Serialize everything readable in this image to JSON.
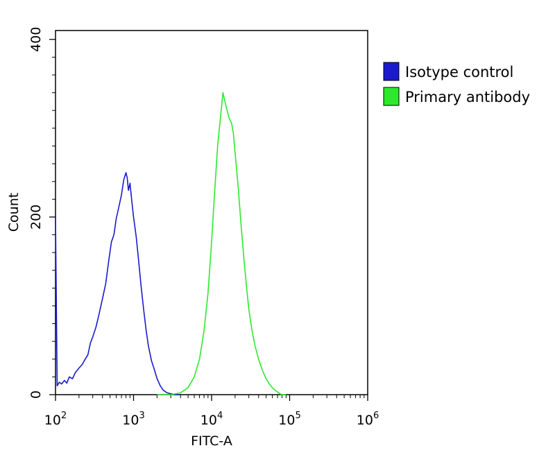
{
  "chart_data": {
    "type": "line",
    "title": "",
    "xlabel": "FITC-A",
    "ylabel": "Count",
    "x_scale": "log",
    "xlim": [
      100,
      1000000
    ],
    "ylim": [
      0,
      410
    ],
    "x_ticks": [
      {
        "value": 100,
        "base": "10",
        "exp": "2"
      },
      {
        "value": 1000,
        "base": "10",
        "exp": "3"
      },
      {
        "value": 10000,
        "base": "10",
        "exp": "4"
      },
      {
        "value": 100000,
        "base": "10",
        "exp": "5"
      },
      {
        "value": 1000000,
        "base": "10",
        "exp": "6"
      }
    ],
    "y_ticks": [
      {
        "value": 0,
        "label": "0"
      },
      {
        "value": 200,
        "label": "200"
      },
      {
        "value": 400,
        "label": "400"
      }
    ],
    "grid": false,
    "legend_position": "top-right",
    "series": [
      {
        "name": "Isotype control",
        "color": "#1a1acc",
        "x": [
          100,
          105,
          112,
          120,
          130,
          140,
          150,
          165,
          180,
          200,
          220,
          240,
          260,
          280,
          300,
          330,
          360,
          400,
          440,
          480,
          520,
          560,
          600,
          650,
          700,
          750,
          800,
          830,
          860,
          900,
          950,
          1000,
          1080,
          1150,
          1250,
          1350,
          1450,
          1550,
          1700,
          1850,
          2000,
          2200,
          2400,
          2700,
          3000,
          3400,
          3800
        ],
        "y": [
          200,
          10,
          14,
          12,
          16,
          13,
          20,
          18,
          25,
          30,
          34,
          40,
          45,
          58,
          65,
          76,
          90,
          108,
          125,
          150,
          172,
          180,
          198,
          212,
          225,
          242,
          250,
          244,
          230,
          238,
          218,
          200,
          178,
          155,
          122,
          95,
          72,
          55,
          38,
          28,
          18,
          10,
          5,
          2,
          1,
          0,
          0
        ]
      },
      {
        "name": "Primary antibody",
        "color": "#2ee82e",
        "x": [
          2000,
          3000,
          4000,
          5000,
          6000,
          7000,
          8000,
          9000,
          10000,
          11000,
          12000,
          13000,
          14000,
          15000,
          16000,
          17000,
          18000,
          19000,
          20000,
          22000,
          24000,
          26000,
          28000,
          30000,
          33000,
          36000,
          40000,
          45000,
          50000,
          55000,
          60000,
          65000,
          70000,
          75000,
          80000,
          90000
        ],
        "y": [
          0,
          0,
          2,
          8,
          20,
          40,
          72,
          115,
          172,
          232,
          282,
          312,
          340,
          328,
          318,
          310,
          306,
          294,
          272,
          232,
          188,
          152,
          122,
          96,
          72,
          55,
          40,
          27,
          18,
          12,
          8,
          5,
          3,
          1,
          0,
          0
        ]
      }
    ]
  }
}
